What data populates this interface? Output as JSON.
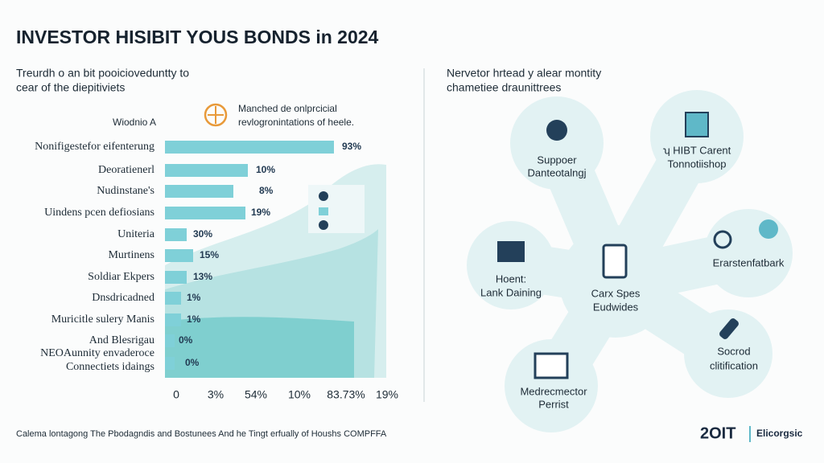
{
  "header": {
    "title": "INVESTOR HISIBIT YOUS BONDS in 2024"
  },
  "left": {
    "subtitle": [
      "Treurdh o an bit pooicioveduntty to",
      "cear of the diepitiviets"
    ],
    "legend": [
      "Manched de onlprcicial",
      "revlogronintations of heele."
    ],
    "axis_title": "Wiodnio  A",
    "rows": [
      "Nonifigestefor eifenterung",
      "Deoratienerl",
      "Nudinstane's",
      "Uindens pcen defiosians",
      "Uniteria",
      "Murtinens",
      "Soldiar Ekpers",
      "Dnsdricadned",
      "Muricitle sulery Manis",
      "And Blesrigau",
      "NEOAunnity envaderoce",
      "Connectiets idaings"
    ],
    "value_labels": [
      "93%",
      "10%",
      "8%",
      "19%",
      "30%",
      "15%",
      "13%",
      "1%",
      "1%",
      "0%",
      "0%"
    ],
    "axis": [
      "0",
      "3%",
      "54%",
      "10%",
      "83.73%",
      "19%"
    ]
  },
  "right": {
    "subtitle": [
      "Nervetor hrtead y alear montity",
      "chametiee draunittrees"
    ],
    "nodes": [
      [
        "Suppoer",
        "Danteotalngj"
      ],
      [
        "ʮ HIBT Carent",
        "Tonnotiishop"
      ],
      [
        "Hoent:",
        "Lank Daining"
      ],
      [
        "Carx Spes",
        "Eudwides"
      ],
      [
        "Erarstenfatbark"
      ],
      [
        "Socrod",
        "clitification"
      ],
      [
        "Medrecmector",
        "Perrist"
      ]
    ]
  },
  "footer": {
    "source": "Calema lontagong The Pbodagndis and Bostunees And he Tingt erfually of Houshs COMPFFA",
    "logo": "2OIT",
    "brand": "Elicorgsic"
  }
}
